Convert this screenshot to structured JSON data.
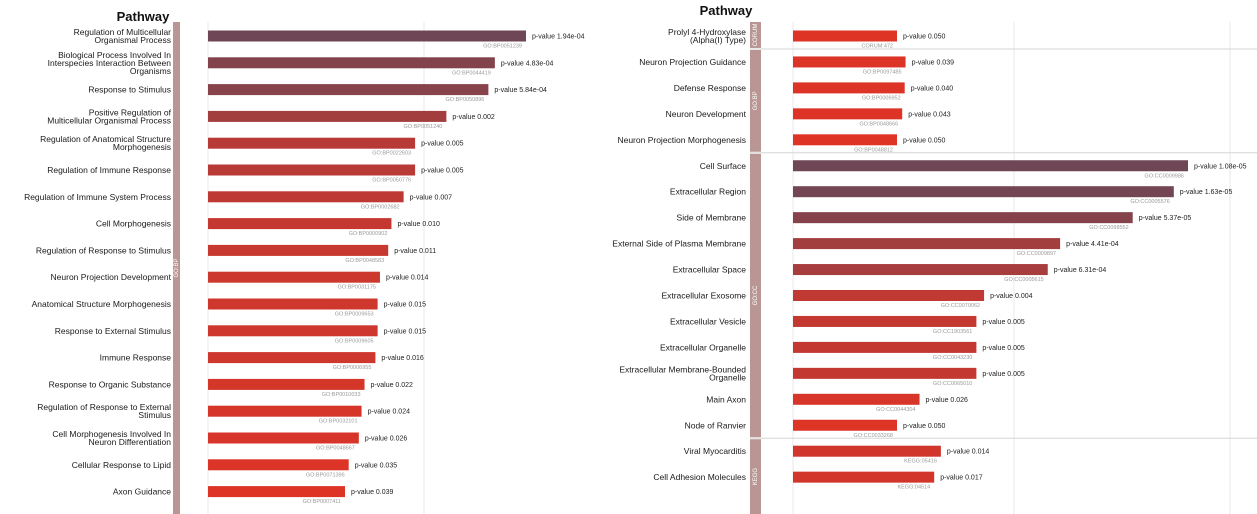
{
  "chart_data": [
    {
      "type": "bar",
      "orientation": "horizontal",
      "title": "Pathway",
      "grid": true,
      "categories": [
        "Regulation of Multicellular Organismal Process",
        "Biological Process Involved In Interspecies Interaction Between Organisms",
        "Response to Stimulus",
        "Positive Regulation of Multicellular Organismal Process",
        "Regulation of Anatomical Structure Morphogenesis",
        "Regulation of Immune Response",
        "Regulation of Immune System Process",
        "Cell Morphogenesis",
        "Regulation of Response to Stimulus",
        "Neuron Projection Development",
        "Anatomical Structure Morphogenesis",
        "Response to External Stimulus",
        "Immune Response",
        "Response to Organic Substance",
        "Regulation of Response to External Stimulus",
        "Cell Morphogenesis Involved In Neuron Differentiation",
        "Cellular Response to Lipid",
        "Axon Guidance"
      ],
      "label_lines": [
        [
          "Regulation of Multicellular",
          "Organismal Process"
        ],
        [
          "Biological Process Involved In",
          "Interspecies Interaction Between",
          "Organisms"
        ],
        [
          "Response to Stimulus"
        ],
        [
          "Positive Regulation of",
          "Multicellular Organismal Process"
        ],
        [
          "Regulation of Anatomical Structure",
          "Morphogenesis"
        ],
        [
          "Regulation of Immune Response"
        ],
        [
          "Regulation of Immune System Process"
        ],
        [
          "Cell Morphogenesis"
        ],
        [
          "Regulation of Response to Stimulus"
        ],
        [
          "Neuron Projection Development"
        ],
        [
          "Anatomical Structure Morphogenesis"
        ],
        [
          "Response to External Stimulus"
        ],
        [
          "Immune Response"
        ],
        [
          "Response to Organic Substance"
        ],
        [
          "Regulation of Response to External",
          "Stimulus"
        ],
        [
          "Cell Morphogenesis Involved In",
          "Neuron Differentiation"
        ],
        [
          "Cellular Response to Lipid"
        ],
        [
          "Axon Guidance"
        ]
      ],
      "p_values": [
        "1.94e-04",
        "4.83e-04",
        "5.84e-04",
        "0.002",
        "0.005",
        "0.005",
        "0.007",
        "0.010",
        "0.011",
        "0.014",
        "0.015",
        "0.015",
        "0.016",
        "0.022",
        "0.024",
        "0.026",
        "0.035",
        "0.039"
      ],
      "p_labels": [
        "p-value 1.94e-04",
        "p-value 4.83e-04",
        "p-value 5.84e-04",
        "p-value 0.002",
        "p-value 0.005",
        "p-value 0.005",
        "p-value 0.007",
        "p-value 0.010",
        "p-value 0.011",
        "p-value 0.014",
        "p-value 0.015",
        "p-value 0.015",
        "p-value 0.016",
        "p-value 0.022",
        "p-value 0.024",
        "p-value 0.026",
        "p-value 0.035",
        "p-value 0.039"
      ],
      "ids": [
        "GO:BP0051239",
        "GO:BP0044419",
        "GO:BP0050896",
        "GO:BP0051240",
        "GO:BP0022603",
        "GO:BP0050776",
        "GO:BP0002682",
        "GO:BP0000902",
        "GO:BP0048583",
        "GO:BP0031175",
        "GO:BP0009653",
        "GO:BP0009605",
        "GO:BP0006955",
        "GO:BP0010033",
        "GO:BP0032101",
        "GO:BP0048667",
        "GO:BP0071396",
        "GO:BP0007411"
      ],
      "groups": [
        {
          "label": "GO:BP",
          "count": 18
        }
      ]
    },
    {
      "type": "bar",
      "orientation": "horizontal",
      "title": "Pathway",
      "grid": true,
      "categories": [
        "Prolyl 4-Hydroxylase (Alpha(I) Type)",
        "Neuron Projection Guidance",
        "Defense Response",
        "Neuron Development",
        "Neuron Projection Morphogenesis",
        "Cell Surface",
        "Extracellular Region",
        "Side of Membrane",
        "External Side of Plasma Membrane",
        "Extracellular Space",
        "Extracellular Exosome",
        "Extracellular Vesicle",
        "Extracellular Organelle",
        "Extracellular Membrane-Bounded Organelle",
        "Main Axon",
        "Node of Ranvier",
        "Viral Myocarditis",
        "Cell Adhesion Molecules"
      ],
      "label_lines": [
        [
          "Prolyl 4-Hydroxylase",
          "(Alpha(I) Type)"
        ],
        [
          "Neuron Projection Guidance"
        ],
        [
          "Defense Response"
        ],
        [
          "Neuron Development"
        ],
        [
          "Neuron Projection Morphogenesis"
        ],
        [
          "Cell Surface"
        ],
        [
          "Extracellular Region"
        ],
        [
          "Side of Membrane"
        ],
        [
          "External Side of Plasma Membrane"
        ],
        [
          "Extracellular Space"
        ],
        [
          "Extracellular Exosome"
        ],
        [
          "Extracellular Vesicle"
        ],
        [
          "Extracellular Organelle"
        ],
        [
          "Extracellular Membrane-Bounded",
          "Organelle"
        ],
        [
          "Main Axon"
        ],
        [
          "Node of Ranvier"
        ],
        [
          "Viral Myocarditis"
        ],
        [
          "Cell Adhesion Molecules"
        ]
      ],
      "p_values": [
        "0.050",
        "0.039",
        "0.040",
        "0.043",
        "0.050",
        "1.08e-05",
        "1.63e-05",
        "5.37e-05",
        "4.41e-04",
        "6.31e-04",
        "0.004",
        "0.005",
        "0.005",
        "0.005",
        "0.026",
        "0.050",
        "0.014",
        "0.017"
      ],
      "p_labels": [
        "p-value 0.050",
        "p-value 0.039",
        "p-value 0.040",
        "p-value 0.043",
        "p-value 0.050",
        "p-value 1.08e-05",
        "p-value 1.63e-05",
        "p-value 5.37e-05",
        "p-value 4.41e-04",
        "p-value 6.31e-04",
        "p-value 0.004",
        "p-value 0.005",
        "p-value 0.005",
        "p-value 0.005",
        "p-value 0.026",
        "p-value 0.050",
        "p-value 0.014",
        "p-value 0.017"
      ],
      "ids": [
        "CORUM:472",
        "GO:BP0097485",
        "GO:BP0006952",
        "GO:BP0048666",
        "GO:BP0048812",
        "GO:CC0009986",
        "GO:CC0005576",
        "GO:CC0098552",
        "GO:CC0009897",
        "GO:CC0005615",
        "GO:CC0070062",
        "GO:CC1903561",
        "GO:CC0043230",
        "GO:CC0065010",
        "GO:CC0044304",
        "GO:CC0033268",
        "KEGG:05416",
        "KEGG:04514"
      ],
      "groups": [
        {
          "label": "CORUM",
          "count": 1
        },
        {
          "label": "GO:BP",
          "count": 4
        },
        {
          "label": "GO:CC",
          "count": 11
        },
        {
          "label": "KEGG",
          "count": 2
        }
      ]
    }
  ],
  "colors": {
    "bar_bright": "#de3426",
    "bar_dark": "#6e4655",
    "group_strip": "#b99693",
    "gridline": "#e9e9e9"
  }
}
